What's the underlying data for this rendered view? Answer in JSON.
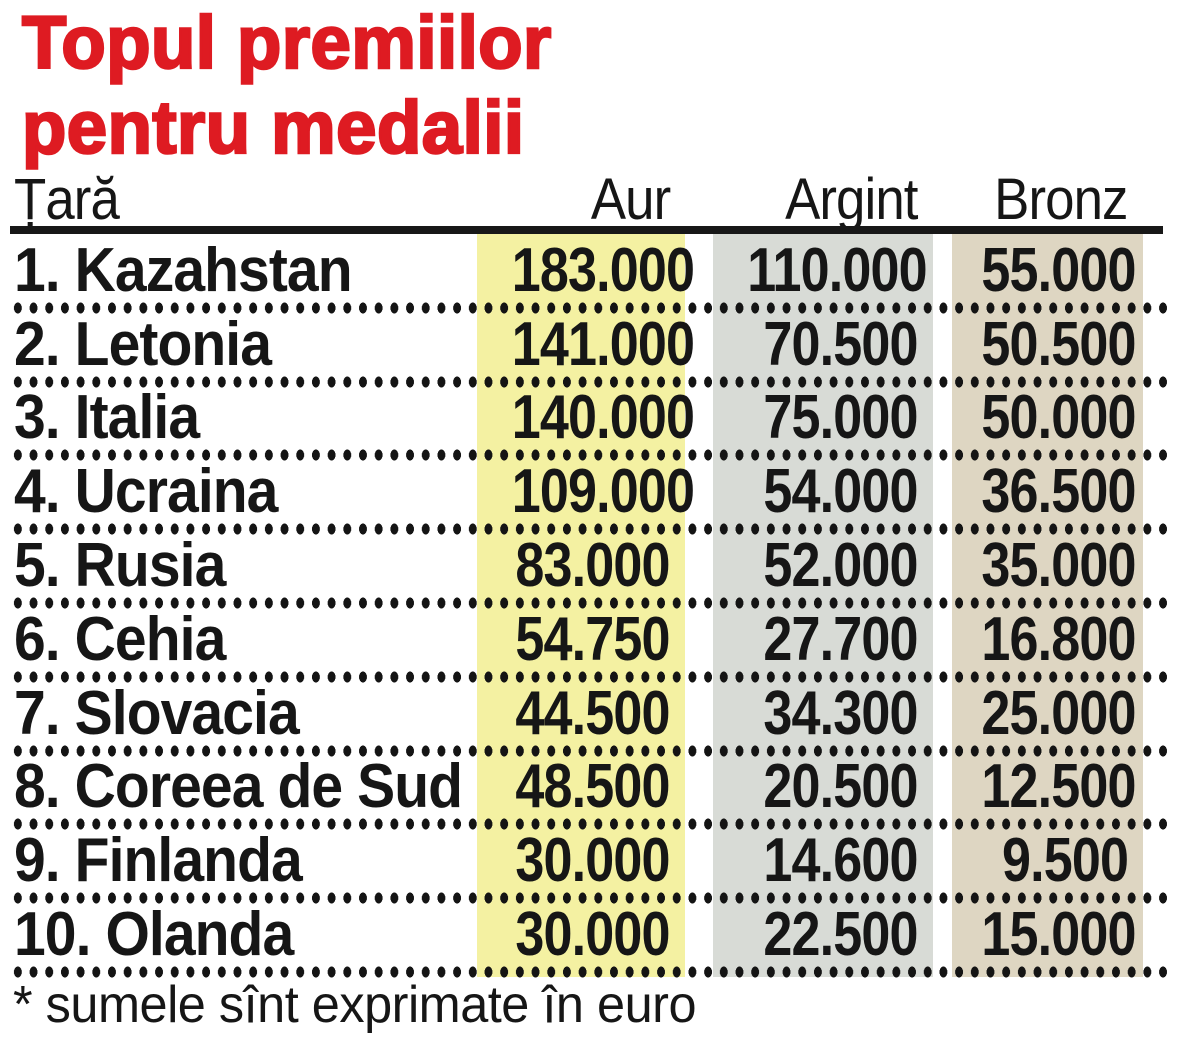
{
  "title": {
    "line1": "Topul premiilor",
    "line2": "pentru medalii"
  },
  "header": {
    "country": "Țară",
    "gold": "Aur",
    "silver": "Argint",
    "bronze": "Bronz"
  },
  "rows": [
    {
      "country": "1. Kazahstan",
      "gold": "183.000",
      "silver": "110.000",
      "bronze": "55.000"
    },
    {
      "country": "2. Letonia",
      "gold": "141.000",
      "silver": "70.500",
      "bronze": "50.500"
    },
    {
      "country": "3. Italia",
      "gold": "140.000",
      "silver": "75.000",
      "bronze": "50.000"
    },
    {
      "country": "4. Ucraina",
      "gold": "109.000",
      "silver": "54.000",
      "bronze": "36.500"
    },
    {
      "country": "5. Rusia",
      "gold": "83.000",
      "silver": "52.000",
      "bronze": "35.000"
    },
    {
      "country": "6. Cehia",
      "gold": "54.750",
      "silver": "27.700",
      "bronze": "16.800"
    },
    {
      "country": "7. Slovacia",
      "gold": "44.500",
      "silver": "34.300",
      "bronze": "25.000"
    },
    {
      "country": "8. Coreea de Sud",
      "gold": "48.500",
      "silver": "20.500",
      "bronze": "12.500"
    },
    {
      "country": "9. Finlanda",
      "gold": "30.000",
      "silver": "14.600",
      "bronze": "9.500"
    },
    {
      "country": "10. Olanda",
      "gold": "30.000",
      "silver": "22.500",
      "bronze": "15.000"
    }
  ],
  "footnote": "* sumele sînt exprimate în euro",
  "colors": {
    "title_red": "#de1b22",
    "gold_column": "#f4f1a2",
    "silver_column": "#d8dbd6",
    "bronze_column": "#ded6c2",
    "text": "#161616",
    "rule": "#181818"
  },
  "chart_data": {
    "type": "table",
    "title": "Topul premiilor pentru medalii",
    "columns": [
      "Țară",
      "Aur",
      "Argint",
      "Bronz"
    ],
    "categories": [
      "Kazahstan",
      "Letonia",
      "Italia",
      "Ucraina",
      "Rusia",
      "Cehia",
      "Slovacia",
      "Coreea de Sud",
      "Finlanda",
      "Olanda"
    ],
    "series": [
      {
        "name": "Aur",
        "values": [
          183000,
          141000,
          140000,
          109000,
          83000,
          54750,
          44500,
          48500,
          30000,
          30000
        ]
      },
      {
        "name": "Argint",
        "values": [
          110000,
          70500,
          75000,
          54000,
          52000,
          27700,
          34300,
          20500,
          14600,
          22500
        ]
      },
      {
        "name": "Bronz",
        "values": [
          55000,
          50500,
          50000,
          36500,
          35000,
          16800,
          25000,
          12500,
          9500,
          15000
        ]
      }
    ],
    "unit": "euro",
    "footnote": "* sumele sînt exprimate în euro",
    "layout": {
      "ranked": true,
      "highlighted_columns": [
        "Aur",
        "Argint",
        "Bronz"
      ]
    }
  }
}
